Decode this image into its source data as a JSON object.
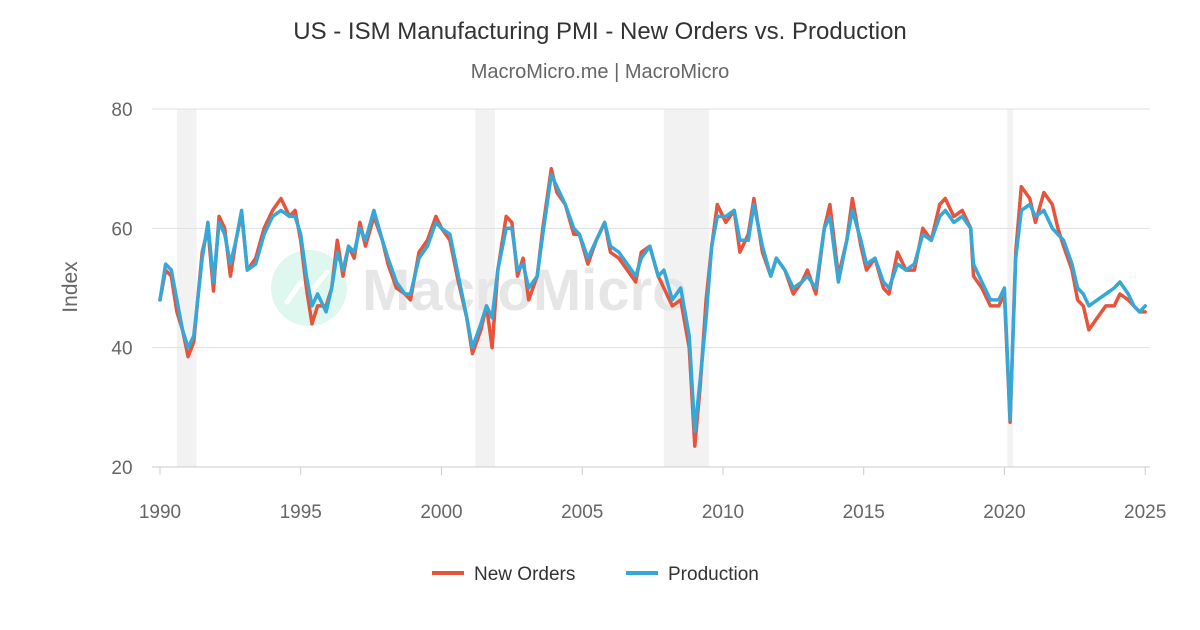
{
  "chart_data": {
    "type": "line",
    "title": "US - ISM Manufacturing PMI - New Orders vs. Production",
    "subtitle": "MacroMicro.me | MacroMicro",
    "watermark": "MacroMicro",
    "xlabel": "",
    "ylabel": "Index",
    "xlim": [
      1990,
      2025.1
    ],
    "ylim": [
      20,
      80
    ],
    "y_ticks": [
      "20",
      "40",
      "60",
      "80"
    ],
    "x_ticks": [
      "1990",
      "1995",
      "2000",
      "2005",
      "2010",
      "2015",
      "2020",
      "2025"
    ],
    "grid": true,
    "legend_position": "bottom-center",
    "recessions": [
      [
        1990.6,
        1991.3
      ],
      [
        2001.2,
        2001.9
      ],
      [
        2007.9,
        2009.5
      ],
      [
        2020.1,
        2020.3
      ]
    ],
    "colors": {
      "New Orders": "#e8533b",
      "Production": "#35a8d8",
      "recession": "#f2f2f2",
      "grid": "#e0e0e0"
    },
    "series": [
      {
        "name": "New Orders",
        "points": [
          [
            1990.0,
            48
          ],
          [
            1990.2,
            53
          ],
          [
            1990.4,
            52
          ],
          [
            1990.6,
            46
          ],
          [
            1990.8,
            43
          ],
          [
            1991.0,
            38.5
          ],
          [
            1991.2,
            41
          ],
          [
            1991.5,
            56
          ],
          [
            1991.7,
            60
          ],
          [
            1991.9,
            49.5
          ],
          [
            1992.1,
            62
          ],
          [
            1992.3,
            60
          ],
          [
            1992.5,
            52
          ],
          [
            1992.7,
            58
          ],
          [
            1992.9,
            62.5
          ],
          [
            1993.1,
            53
          ],
          [
            1993.4,
            55
          ],
          [
            1993.7,
            60
          ],
          [
            1994.0,
            63
          ],
          [
            1994.3,
            65
          ],
          [
            1994.6,
            62
          ],
          [
            1994.8,
            63
          ],
          [
            1995.0,
            58
          ],
          [
            1995.2,
            50
          ],
          [
            1995.4,
            44
          ],
          [
            1995.6,
            47
          ],
          [
            1995.9,
            47
          ],
          [
            1996.1,
            50
          ],
          [
            1996.3,
            58
          ],
          [
            1996.5,
            52
          ],
          [
            1996.7,
            57
          ],
          [
            1996.9,
            55
          ],
          [
            1997.1,
            61
          ],
          [
            1997.3,
            57
          ],
          [
            1997.6,
            62
          ],
          [
            1997.9,
            58
          ],
          [
            1998.1,
            54
          ],
          [
            1998.4,
            50
          ],
          [
            1998.7,
            49
          ],
          [
            1998.9,
            48
          ],
          [
            1999.2,
            56
          ],
          [
            1999.5,
            58
          ],
          [
            1999.8,
            62
          ],
          [
            2000.0,
            60
          ],
          [
            2000.3,
            58
          ],
          [
            2000.6,
            51
          ],
          [
            2000.9,
            45
          ],
          [
            2001.1,
            39
          ],
          [
            2001.4,
            43
          ],
          [
            2001.6,
            47
          ],
          [
            2001.8,
            40
          ],
          [
            2002.0,
            53
          ],
          [
            2002.3,
            62
          ],
          [
            2002.5,
            61
          ],
          [
            2002.7,
            52
          ],
          [
            2002.9,
            55
          ],
          [
            2003.1,
            48
          ],
          [
            2003.4,
            52
          ],
          [
            2003.6,
            60
          ],
          [
            2003.9,
            70
          ],
          [
            2004.1,
            66
          ],
          [
            2004.4,
            64
          ],
          [
            2004.7,
            59
          ],
          [
            2004.9,
            59
          ],
          [
            2005.2,
            54
          ],
          [
            2005.5,
            58
          ],
          [
            2005.8,
            61
          ],
          [
            2006.0,
            56
          ],
          [
            2006.3,
            55
          ],
          [
            2006.6,
            53
          ],
          [
            2006.9,
            51
          ],
          [
            2007.1,
            56
          ],
          [
            2007.4,
            57
          ],
          [
            2007.7,
            52
          ],
          [
            2007.9,
            50
          ],
          [
            2008.2,
            47
          ],
          [
            2008.5,
            48
          ],
          [
            2008.8,
            40
          ],
          [
            2009.0,
            23.5
          ],
          [
            2009.2,
            34
          ],
          [
            2009.4,
            48
          ],
          [
            2009.6,
            57
          ],
          [
            2009.8,
            64
          ],
          [
            2010.1,
            61
          ],
          [
            2010.4,
            63
          ],
          [
            2010.6,
            56
          ],
          [
            2010.9,
            59
          ],
          [
            2011.1,
            65
          ],
          [
            2011.4,
            56
          ],
          [
            2011.7,
            52
          ],
          [
            2011.9,
            55
          ],
          [
            2012.2,
            53
          ],
          [
            2012.5,
            49
          ],
          [
            2012.8,
            51
          ],
          [
            2013.0,
            53
          ],
          [
            2013.3,
            49
          ],
          [
            2013.6,
            60
          ],
          [
            2013.8,
            64
          ],
          [
            2014.1,
            52
          ],
          [
            2014.4,
            58
          ],
          [
            2014.6,
            65
          ],
          [
            2014.9,
            57
          ],
          [
            2015.1,
            53
          ],
          [
            2015.4,
            55
          ],
          [
            2015.7,
            50
          ],
          [
            2015.9,
            49
          ],
          [
            2016.2,
            56
          ],
          [
            2016.5,
            53
          ],
          [
            2016.8,
            53
          ],
          [
            2017.1,
            60
          ],
          [
            2017.4,
            58
          ],
          [
            2017.7,
            64
          ],
          [
            2017.9,
            65
          ],
          [
            2018.2,
            62
          ],
          [
            2018.5,
            63
          ],
          [
            2018.8,
            60
          ],
          [
            2018.9,
            52
          ],
          [
            2019.2,
            50
          ],
          [
            2019.5,
            47
          ],
          [
            2019.8,
            47
          ],
          [
            2020.0,
            49
          ],
          [
            2020.2,
            27.5
          ],
          [
            2020.4,
            56
          ],
          [
            2020.6,
            67
          ],
          [
            2020.9,
            65
          ],
          [
            2021.1,
            61
          ],
          [
            2021.4,
            66
          ],
          [
            2021.7,
            64
          ],
          [
            2021.9,
            60
          ],
          [
            2022.1,
            57
          ],
          [
            2022.4,
            53
          ],
          [
            2022.6,
            48
          ],
          [
            2022.8,
            47
          ],
          [
            2023.0,
            43
          ],
          [
            2023.3,
            45
          ],
          [
            2023.6,
            47
          ],
          [
            2023.9,
            47
          ],
          [
            2024.1,
            49
          ],
          [
            2024.4,
            48
          ],
          [
            2024.6,
            47
          ],
          [
            2024.8,
            46
          ],
          [
            2025.0,
            46
          ]
        ]
      },
      {
        "name": "Production",
        "points": [
          [
            1990.0,
            48
          ],
          [
            1990.2,
            54
          ],
          [
            1990.4,
            53
          ],
          [
            1990.6,
            48
          ],
          [
            1990.8,
            43
          ],
          [
            1991.0,
            40
          ],
          [
            1991.2,
            42
          ],
          [
            1991.5,
            55
          ],
          [
            1991.7,
            61
          ],
          [
            1991.9,
            51
          ],
          [
            1992.1,
            61
          ],
          [
            1992.3,
            59
          ],
          [
            1992.5,
            54
          ],
          [
            1992.7,
            58
          ],
          [
            1992.9,
            63
          ],
          [
            1993.1,
            53
          ],
          [
            1993.4,
            54
          ],
          [
            1993.7,
            59
          ],
          [
            1994.0,
            62
          ],
          [
            1994.3,
            63
          ],
          [
            1994.6,
            62
          ],
          [
            1994.8,
            62
          ],
          [
            1995.0,
            59
          ],
          [
            1995.2,
            52
          ],
          [
            1995.4,
            47
          ],
          [
            1995.6,
            49
          ],
          [
            1995.9,
            46
          ],
          [
            1996.1,
            50
          ],
          [
            1996.3,
            56
          ],
          [
            1996.5,
            53
          ],
          [
            1996.7,
            57
          ],
          [
            1996.9,
            56
          ],
          [
            1997.1,
            60
          ],
          [
            1997.3,
            58
          ],
          [
            1997.6,
            63
          ],
          [
            1997.9,
            58
          ],
          [
            1998.1,
            55
          ],
          [
            1998.4,
            51
          ],
          [
            1998.7,
            49
          ],
          [
            1998.9,
            49
          ],
          [
            1999.2,
            55
          ],
          [
            1999.5,
            57
          ],
          [
            1999.8,
            61
          ],
          [
            2000.0,
            60
          ],
          [
            2000.3,
            59
          ],
          [
            2000.6,
            52
          ],
          [
            2000.9,
            45
          ],
          [
            2001.1,
            40
          ],
          [
            2001.4,
            44
          ],
          [
            2001.6,
            47
          ],
          [
            2001.8,
            45
          ],
          [
            2002.0,
            53
          ],
          [
            2002.3,
            60
          ],
          [
            2002.5,
            60
          ],
          [
            2002.7,
            53
          ],
          [
            2002.9,
            54
          ],
          [
            2003.1,
            50
          ],
          [
            2003.4,
            52
          ],
          [
            2003.6,
            59
          ],
          [
            2003.9,
            69
          ],
          [
            2004.1,
            67
          ],
          [
            2004.4,
            64
          ],
          [
            2004.7,
            60
          ],
          [
            2004.9,
            59
          ],
          [
            2005.2,
            55
          ],
          [
            2005.5,
            58
          ],
          [
            2005.8,
            61
          ],
          [
            2006.0,
            57
          ],
          [
            2006.3,
            56
          ],
          [
            2006.6,
            54
          ],
          [
            2006.9,
            52
          ],
          [
            2007.1,
            55
          ],
          [
            2007.4,
            57
          ],
          [
            2007.7,
            52
          ],
          [
            2007.9,
            53
          ],
          [
            2008.2,
            48
          ],
          [
            2008.5,
            50
          ],
          [
            2008.8,
            42
          ],
          [
            2009.0,
            26
          ],
          [
            2009.2,
            35
          ],
          [
            2009.4,
            45
          ],
          [
            2009.6,
            57
          ],
          [
            2009.8,
            62
          ],
          [
            2010.1,
            62
          ],
          [
            2010.4,
            63
          ],
          [
            2010.6,
            58
          ],
          [
            2010.9,
            58
          ],
          [
            2011.1,
            64
          ],
          [
            2011.4,
            57
          ],
          [
            2011.7,
            52
          ],
          [
            2011.9,
            55
          ],
          [
            2012.2,
            53
          ],
          [
            2012.5,
            50
          ],
          [
            2012.8,
            51
          ],
          [
            2013.0,
            52
          ],
          [
            2013.3,
            50
          ],
          [
            2013.6,
            60
          ],
          [
            2013.8,
            62
          ],
          [
            2014.1,
            51
          ],
          [
            2014.4,
            58
          ],
          [
            2014.6,
            63
          ],
          [
            2014.9,
            58
          ],
          [
            2015.1,
            54
          ],
          [
            2015.4,
            55
          ],
          [
            2015.7,
            51
          ],
          [
            2015.9,
            50
          ],
          [
            2016.2,
            54
          ],
          [
            2016.5,
            53
          ],
          [
            2016.8,
            54
          ],
          [
            2017.1,
            59
          ],
          [
            2017.4,
            58
          ],
          [
            2017.7,
            62
          ],
          [
            2017.9,
            63
          ],
          [
            2018.2,
            61
          ],
          [
            2018.5,
            62
          ],
          [
            2018.8,
            60
          ],
          [
            2018.9,
            54
          ],
          [
            2019.2,
            51
          ],
          [
            2019.5,
            48
          ],
          [
            2019.8,
            48
          ],
          [
            2020.0,
            50
          ],
          [
            2020.2,
            28
          ],
          [
            2020.4,
            55
          ],
          [
            2020.6,
            63
          ],
          [
            2020.9,
            64
          ],
          [
            2021.1,
            62
          ],
          [
            2021.4,
            63
          ],
          [
            2021.7,
            60
          ],
          [
            2021.9,
            59
          ],
          [
            2022.1,
            58
          ],
          [
            2022.4,
            54
          ],
          [
            2022.6,
            50
          ],
          [
            2022.8,
            49
          ],
          [
            2023.0,
            47
          ],
          [
            2023.3,
            48
          ],
          [
            2023.6,
            49
          ],
          [
            2023.9,
            50
          ],
          [
            2024.1,
            51
          ],
          [
            2024.4,
            49
          ],
          [
            2024.6,
            47
          ],
          [
            2024.8,
            46
          ],
          [
            2025.0,
            47
          ]
        ]
      }
    ]
  }
}
